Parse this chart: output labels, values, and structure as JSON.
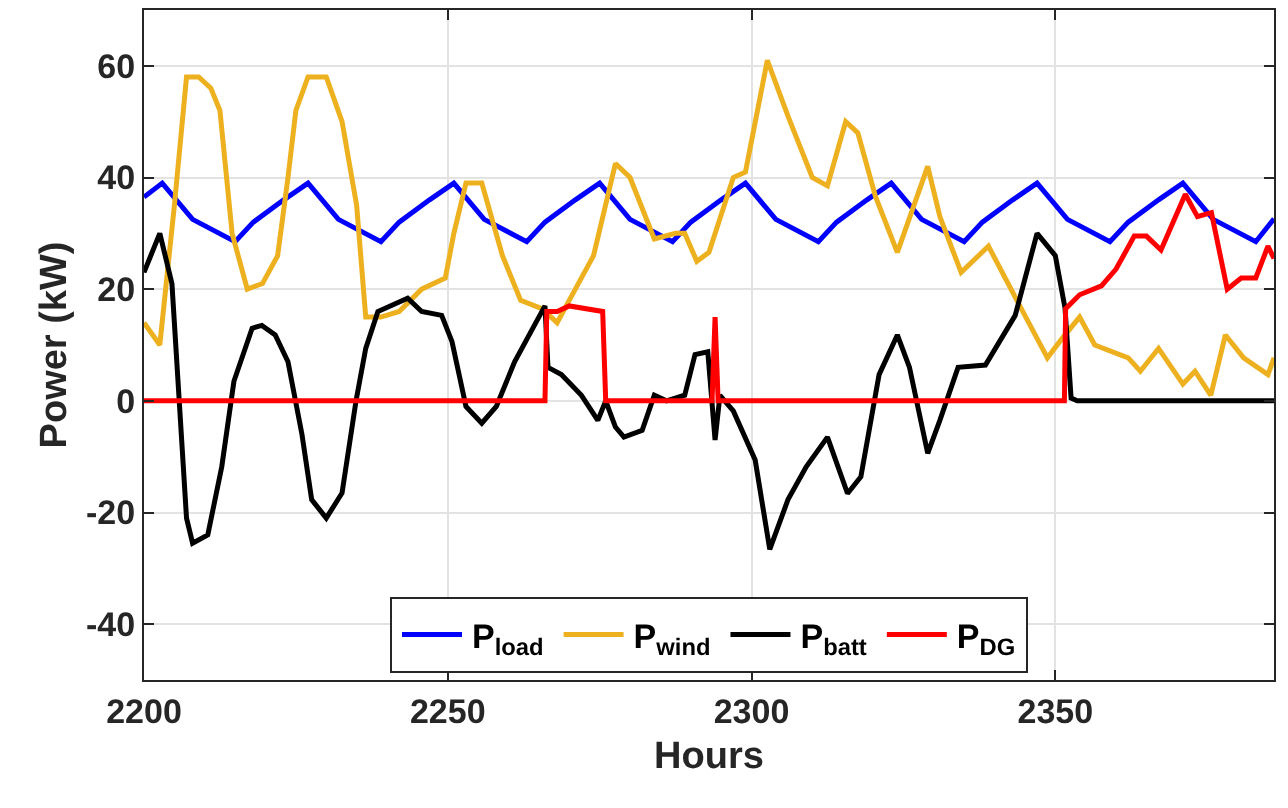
{
  "chart_data": {
    "type": "line",
    "xlabel": "Hours",
    "ylabel": "Power (kW)",
    "xlim": [
      2200,
      2386
    ],
    "ylim": [
      -50,
      70
    ],
    "xticks": [
      2200,
      2250,
      2300,
      2350
    ],
    "yticks": [
      -40,
      -20,
      0,
      20,
      40,
      60
    ],
    "grid": true,
    "legend": "bottom",
    "line_style": "solid",
    "marker": "none",
    "series": [
      {
        "name": "P$_{load}$",
        "color": "#0000ff",
        "x": [
          2200,
          2203,
          2208,
          2215,
          2218,
          2223,
          2227,
          2232,
          2239,
          2242,
          2247,
          2251,
          2256,
          2263,
          2266,
          2271,
          2275,
          2280,
          2287,
          2290,
          2295,
          2299,
          2304,
          2311,
          2314,
          2319,
          2323,
          2328,
          2335,
          2338,
          2343,
          2347,
          2352,
          2359,
          2362,
          2367,
          2371,
          2376,
          2383,
          2386
        ],
        "values": [
          36.5,
          39,
          32.5,
          28.5,
          32,
          36,
          39,
          32.5,
          28.5,
          32,
          36,
          39,
          32.5,
          28.5,
          32,
          36,
          39,
          32.5,
          28.5,
          32,
          36,
          39,
          32.5,
          28.5,
          32,
          36,
          39,
          32.5,
          28.5,
          32,
          36,
          39,
          32.5,
          28.5,
          32,
          36,
          39,
          32.5,
          28.5,
          32.6
        ]
      },
      {
        "name": "P$_{wind}$",
        "color": "#edb120",
        "x": [
          2200,
          2202.6,
          2205,
          2207,
          2209,
          2211,
          2212.5,
          2214.5,
          2217,
          2219.5,
          2222,
          2223.7,
          2225,
          2227,
          2230,
          2232.6,
          2235,
          2236.5,
          2239,
          2242,
          2245.7,
          2249.6,
          2251,
          2253,
          2255.6,
          2259,
          2262,
          2265.5,
          2268,
          2271,
          2274,
          2277.6,
          2280,
          2284,
          2287.5,
          2289,
          2291,
          2293,
          2297,
          2299,
          2302.6,
          2306,
          2310,
          2312.5,
          2315.5,
          2317.5,
          2320.4,
          2324,
          2329,
          2331,
          2334.5,
          2339,
          2344.4,
          2348.7,
          2351,
          2354,
          2356.5,
          2362,
          2364,
          2367,
          2371,
          2373,
          2375.6,
          2378,
          2381,
          2385,
          2386
        ],
        "values": [
          14,
          10,
          35,
          58,
          58,
          56,
          52,
          30,
          20,
          21,
          26,
          40,
          52,
          58,
          58,
          50,
          35,
          15,
          15,
          16,
          20,
          22,
          30,
          39,
          39,
          26,
          18,
          16.5,
          14,
          20,
          26,
          42.5,
          40,
          29,
          30,
          30,
          25,
          26.6,
          40,
          41,
          61,
          51,
          40,
          38.5,
          50,
          48,
          36.6,
          26.6,
          42,
          33,
          23,
          27.7,
          16.5,
          7.7,
          11,
          15,
          10,
          7.7,
          5.3,
          9.4,
          3,
          5.3,
          1,
          11.8,
          7.7,
          4.7,
          7.7
        ]
      },
      {
        "name": "P$_{batt}$",
        "color": "#000000",
        "x": [
          2200,
          2202.6,
          2204.6,
          2207,
          2208,
          2210.5,
          2212.8,
          2214.8,
          2217.8,
          2219.4,
          2221.6,
          2223.7,
          2226,
          2227.6,
          2230,
          2232.6,
          2234.9,
          2236.5,
          2238.5,
          2243.4,
          2245.7,
          2249,
          2250.7,
          2253,
          2255.6,
          2258,
          2261,
          2264.5,
          2266,
          2266.5,
          2268.7,
          2272,
          2274.7,
          2276,
          2277.6,
          2279,
          2282,
          2284,
          2286,
          2289,
          2290.7,
          2292.8,
          2294,
          2294.8,
          2297,
          2300.6,
          2303,
          2306,
          2309,
          2312.5,
          2315.8,
          2318,
          2321,
          2324,
          2326,
          2329,
          2331,
          2334,
          2338.5,
          2343.4,
          2347,
          2350,
          2351.6,
          2352.6,
          2353.6,
          2386
        ],
        "values": [
          23,
          30,
          21,
          -21,
          -25.5,
          -24,
          -11.8,
          3.5,
          13,
          13.5,
          11.8,
          7,
          -6,
          -17.7,
          -21,
          -16.5,
          0,
          9.4,
          16,
          18.4,
          16,
          15.3,
          10.6,
          -1,
          -4,
          -1,
          7,
          14,
          17,
          6,
          4.7,
          1,
          -3.5,
          0,
          -4.7,
          -6.5,
          -5.3,
          1,
          0,
          1,
          8.3,
          8.8,
          -7,
          1,
          -1.8,
          -10.6,
          -26.6,
          -17.7,
          -11.8,
          -6.5,
          -16.6,
          -13.6,
          4.7,
          11.8,
          6,
          -9.4,
          -3.5,
          6,
          6.4,
          15.3,
          30,
          26,
          16.6,
          0.5,
          0,
          0
        ]
      },
      {
        "name": "P$_{DG}$",
        "color": "#ff0000",
        "x": [
          2200,
          2266,
          2266.3,
          2268,
          2270,
          2275.5,
          2276,
          2293.5,
          2294,
          2294.5,
          2351.5,
          2351.7,
          2354,
          2357.6,
          2360,
          2363,
          2365,
          2367.4,
          2371.4,
          2373.4,
          2375.7,
          2378.3,
          2380.6,
          2383,
          2385,
          2386
        ],
        "values": [
          0,
          0,
          16,
          16,
          17,
          16,
          0,
          0,
          15,
          0,
          0,
          16.5,
          19,
          20.6,
          23.6,
          29.5,
          29.5,
          27,
          37,
          33,
          33.7,
          20,
          22,
          22,
          27.7,
          25.5
        ]
      }
    ]
  }
}
